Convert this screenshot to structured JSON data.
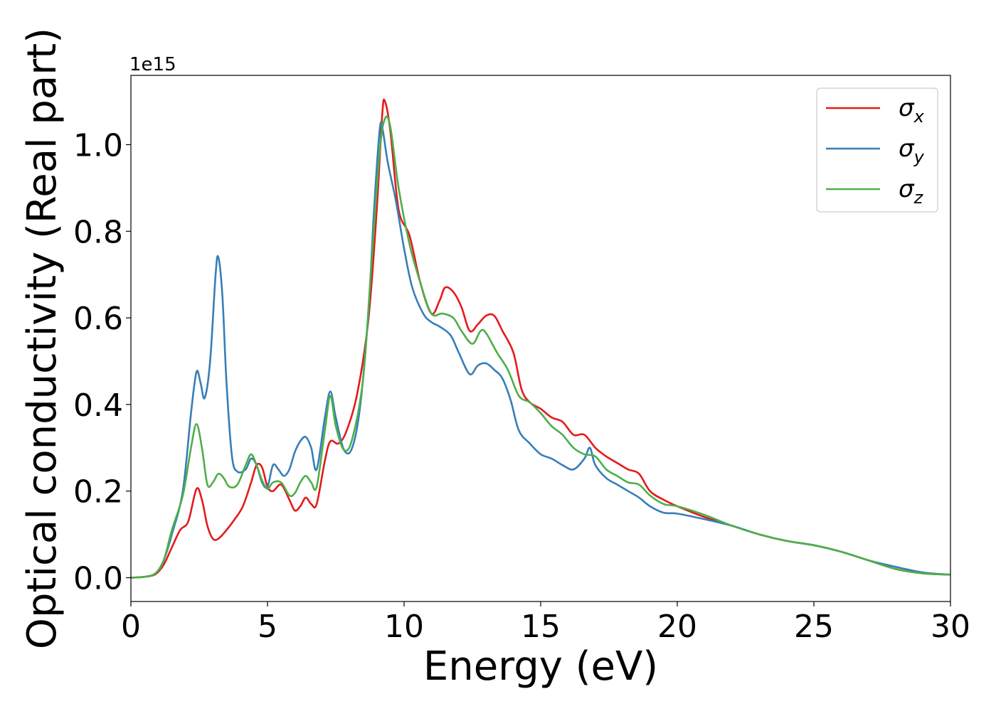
{
  "chart_data": {
    "type": "line",
    "xlabel": "Energy (eV)",
    "ylabel": "Optical conductivity (Real part)",
    "y_offset_label": "1e15",
    "xlim": [
      0,
      30
    ],
    "ylim": [
      -0.055,
      1.16
    ],
    "x_ticks": [
      0,
      5,
      10,
      15,
      20,
      25,
      30
    ],
    "x_tick_labels": [
      "0",
      "5",
      "10",
      "15",
      "20",
      "25",
      "30"
    ],
    "y_ticks": [
      0.0,
      0.2,
      0.4,
      0.6,
      0.8,
      1.0
    ],
    "y_tick_labels": [
      "0.0",
      "0.2",
      "0.4",
      "0.6",
      "0.8",
      "1.0"
    ],
    "grid": false,
    "legend_position": "top-right",
    "series": [
      {
        "name": "σx",
        "legend": {
          "base": "σ",
          "sub": "x"
        },
        "color": "#e41a1c",
        "points": [
          [
            0,
            0
          ],
          [
            0.5,
            0.002
          ],
          [
            0.9,
            0.008
          ],
          [
            1.2,
            0.03
          ],
          [
            1.5,
            0.07
          ],
          [
            1.8,
            0.11
          ],
          [
            2.1,
            0.13
          ],
          [
            2.4,
            0.205
          ],
          [
            2.6,
            0.18
          ],
          [
            2.8,
            0.12
          ],
          [
            3.0,
            0.09
          ],
          [
            3.2,
            0.09
          ],
          [
            3.5,
            0.11
          ],
          [
            3.8,
            0.135
          ],
          [
            4.1,
            0.165
          ],
          [
            4.4,
            0.22
          ],
          [
            4.6,
            0.26
          ],
          [
            4.8,
            0.255
          ],
          [
            5.0,
            0.21
          ],
          [
            5.2,
            0.2
          ],
          [
            5.5,
            0.215
          ],
          [
            5.8,
            0.18
          ],
          [
            6.0,
            0.155
          ],
          [
            6.2,
            0.165
          ],
          [
            6.4,
            0.185
          ],
          [
            6.6,
            0.17
          ],
          [
            6.8,
            0.17
          ],
          [
            7.1,
            0.27
          ],
          [
            7.3,
            0.315
          ],
          [
            7.6,
            0.31
          ],
          [
            7.9,
            0.34
          ],
          [
            8.3,
            0.43
          ],
          [
            8.7,
            0.6
          ],
          [
            9.0,
            0.85
          ],
          [
            9.2,
            1.07
          ],
          [
            9.3,
            1.1
          ],
          [
            9.5,
            1.03
          ],
          [
            9.8,
            0.85
          ],
          [
            10.2,
            0.79
          ],
          [
            10.6,
            0.68
          ],
          [
            11.0,
            0.61
          ],
          [
            11.3,
            0.64
          ],
          [
            11.5,
            0.67
          ],
          [
            11.8,
            0.66
          ],
          [
            12.1,
            0.625
          ],
          [
            12.4,
            0.57
          ],
          [
            12.7,
            0.585
          ],
          [
            13.0,
            0.605
          ],
          [
            13.3,
            0.605
          ],
          [
            13.6,
            0.57
          ],
          [
            14.0,
            0.52
          ],
          [
            14.3,
            0.435
          ],
          [
            14.6,
            0.405
          ],
          [
            15.0,
            0.39
          ],
          [
            15.4,
            0.37
          ],
          [
            15.8,
            0.36
          ],
          [
            16.2,
            0.33
          ],
          [
            16.6,
            0.33
          ],
          [
            17.0,
            0.3
          ],
          [
            17.4,
            0.28
          ],
          [
            17.8,
            0.265
          ],
          [
            18.2,
            0.25
          ],
          [
            18.6,
            0.24
          ],
          [
            19.0,
            0.2
          ],
          [
            19.5,
            0.18
          ],
          [
            20.0,
            0.165
          ],
          [
            21.0,
            0.14
          ],
          [
            22.0,
            0.12
          ],
          [
            23.0,
            0.1
          ],
          [
            24.0,
            0.085
          ],
          [
            25.0,
            0.075
          ],
          [
            26.0,
            0.06
          ],
          [
            27.0,
            0.04
          ],
          [
            28.0,
            0.02
          ],
          [
            29.0,
            0.01
          ],
          [
            30.0,
            0.007
          ]
        ]
      },
      {
        "name": "σy",
        "legend": {
          "base": "σ",
          "sub": "y"
        },
        "color": "#377eb8",
        "points": [
          [
            0,
            0
          ],
          [
            0.5,
            0.002
          ],
          [
            0.9,
            0.01
          ],
          [
            1.2,
            0.04
          ],
          [
            1.5,
            0.1
          ],
          [
            1.9,
            0.2
          ],
          [
            2.2,
            0.38
          ],
          [
            2.4,
            0.475
          ],
          [
            2.55,
            0.45
          ],
          [
            2.7,
            0.415
          ],
          [
            2.9,
            0.5
          ],
          [
            3.1,
            0.7
          ],
          [
            3.2,
            0.74
          ],
          [
            3.35,
            0.65
          ],
          [
            3.5,
            0.45
          ],
          [
            3.7,
            0.28
          ],
          [
            3.9,
            0.245
          ],
          [
            4.2,
            0.25
          ],
          [
            4.4,
            0.275
          ],
          [
            4.6,
            0.26
          ],
          [
            4.8,
            0.22
          ],
          [
            5.0,
            0.21
          ],
          [
            5.2,
            0.26
          ],
          [
            5.4,
            0.25
          ],
          [
            5.6,
            0.235
          ],
          [
            5.8,
            0.25
          ],
          [
            6.0,
            0.29
          ],
          [
            6.2,
            0.315
          ],
          [
            6.4,
            0.325
          ],
          [
            6.6,
            0.3
          ],
          [
            6.8,
            0.25
          ],
          [
            7.1,
            0.37
          ],
          [
            7.3,
            0.43
          ],
          [
            7.5,
            0.37
          ],
          [
            7.8,
            0.295
          ],
          [
            8.1,
            0.3
          ],
          [
            8.4,
            0.4
          ],
          [
            8.7,
            0.62
          ],
          [
            8.9,
            0.85
          ],
          [
            9.1,
            1.03
          ],
          [
            9.2,
            1.04
          ],
          [
            9.4,
            0.96
          ],
          [
            9.7,
            0.87
          ],
          [
            10.0,
            0.76
          ],
          [
            10.3,
            0.67
          ],
          [
            10.7,
            0.61
          ],
          [
            11.0,
            0.59
          ],
          [
            11.3,
            0.58
          ],
          [
            11.7,
            0.56
          ],
          [
            12.0,
            0.52
          ],
          [
            12.4,
            0.47
          ],
          [
            12.7,
            0.49
          ],
          [
            13.0,
            0.495
          ],
          [
            13.3,
            0.48
          ],
          [
            13.6,
            0.46
          ],
          [
            13.9,
            0.41
          ],
          [
            14.2,
            0.34
          ],
          [
            14.6,
            0.31
          ],
          [
            15.0,
            0.285
          ],
          [
            15.4,
            0.275
          ],
          [
            15.8,
            0.26
          ],
          [
            16.2,
            0.25
          ],
          [
            16.6,
            0.275
          ],
          [
            16.8,
            0.3
          ],
          [
            17.0,
            0.26
          ],
          [
            17.4,
            0.23
          ],
          [
            17.8,
            0.215
          ],
          [
            18.2,
            0.2
          ],
          [
            18.6,
            0.185
          ],
          [
            19.0,
            0.165
          ],
          [
            19.5,
            0.15
          ],
          [
            20.0,
            0.148
          ],
          [
            21.0,
            0.135
          ],
          [
            22.0,
            0.12
          ],
          [
            23.0,
            0.1
          ],
          [
            24.0,
            0.085
          ],
          [
            25.0,
            0.075
          ],
          [
            26.0,
            0.06
          ],
          [
            27.0,
            0.04
          ],
          [
            28.0,
            0.025
          ],
          [
            29.0,
            0.012
          ],
          [
            30.0,
            0.007
          ]
        ]
      },
      {
        "name": "σz",
        "legend": {
          "base": "σ",
          "sub": "z"
        },
        "color": "#4daf4a",
        "points": [
          [
            0,
            0
          ],
          [
            0.5,
            0.002
          ],
          [
            0.9,
            0.01
          ],
          [
            1.2,
            0.04
          ],
          [
            1.5,
            0.11
          ],
          [
            1.9,
            0.19
          ],
          [
            2.2,
            0.3
          ],
          [
            2.4,
            0.355
          ],
          [
            2.6,
            0.3
          ],
          [
            2.8,
            0.215
          ],
          [
            3.0,
            0.22
          ],
          [
            3.2,
            0.24
          ],
          [
            3.4,
            0.23
          ],
          [
            3.6,
            0.21
          ],
          [
            3.9,
            0.215
          ],
          [
            4.2,
            0.26
          ],
          [
            4.4,
            0.285
          ],
          [
            4.6,
            0.26
          ],
          [
            4.8,
            0.225
          ],
          [
            5.0,
            0.205
          ],
          [
            5.2,
            0.22
          ],
          [
            5.5,
            0.22
          ],
          [
            5.8,
            0.19
          ],
          [
            6.0,
            0.195
          ],
          [
            6.2,
            0.22
          ],
          [
            6.4,
            0.235
          ],
          [
            6.6,
            0.22
          ],
          [
            6.8,
            0.21
          ],
          [
            7.1,
            0.34
          ],
          [
            7.3,
            0.42
          ],
          [
            7.5,
            0.35
          ],
          [
            7.8,
            0.295
          ],
          [
            8.1,
            0.32
          ],
          [
            8.5,
            0.46
          ],
          [
            8.8,
            0.72
          ],
          [
            9.1,
            0.98
          ],
          [
            9.3,
            1.06
          ],
          [
            9.5,
            1.04
          ],
          [
            9.8,
            0.9
          ],
          [
            10.2,
            0.77
          ],
          [
            10.6,
            0.68
          ],
          [
            11.0,
            0.61
          ],
          [
            11.4,
            0.61
          ],
          [
            11.8,
            0.6
          ],
          [
            12.1,
            0.57
          ],
          [
            12.5,
            0.54
          ],
          [
            12.8,
            0.57
          ],
          [
            13.0,
            0.565
          ],
          [
            13.4,
            0.52
          ],
          [
            13.8,
            0.48
          ],
          [
            14.2,
            0.42
          ],
          [
            14.6,
            0.405
          ],
          [
            15.0,
            0.38
          ],
          [
            15.4,
            0.35
          ],
          [
            15.8,
            0.33
          ],
          [
            16.2,
            0.3
          ],
          [
            16.6,
            0.285
          ],
          [
            17.0,
            0.28
          ],
          [
            17.4,
            0.25
          ],
          [
            17.8,
            0.235
          ],
          [
            18.2,
            0.22
          ],
          [
            18.6,
            0.215
          ],
          [
            19.0,
            0.19
          ],
          [
            19.5,
            0.17
          ],
          [
            20.0,
            0.165
          ],
          [
            21.0,
            0.145
          ],
          [
            22.0,
            0.12
          ],
          [
            23.0,
            0.1
          ],
          [
            24.0,
            0.085
          ],
          [
            25.0,
            0.075
          ],
          [
            26.0,
            0.06
          ],
          [
            27.0,
            0.04
          ],
          [
            28.0,
            0.02
          ],
          [
            29.0,
            0.01
          ],
          [
            30.0,
            0.007
          ]
        ]
      }
    ]
  }
}
